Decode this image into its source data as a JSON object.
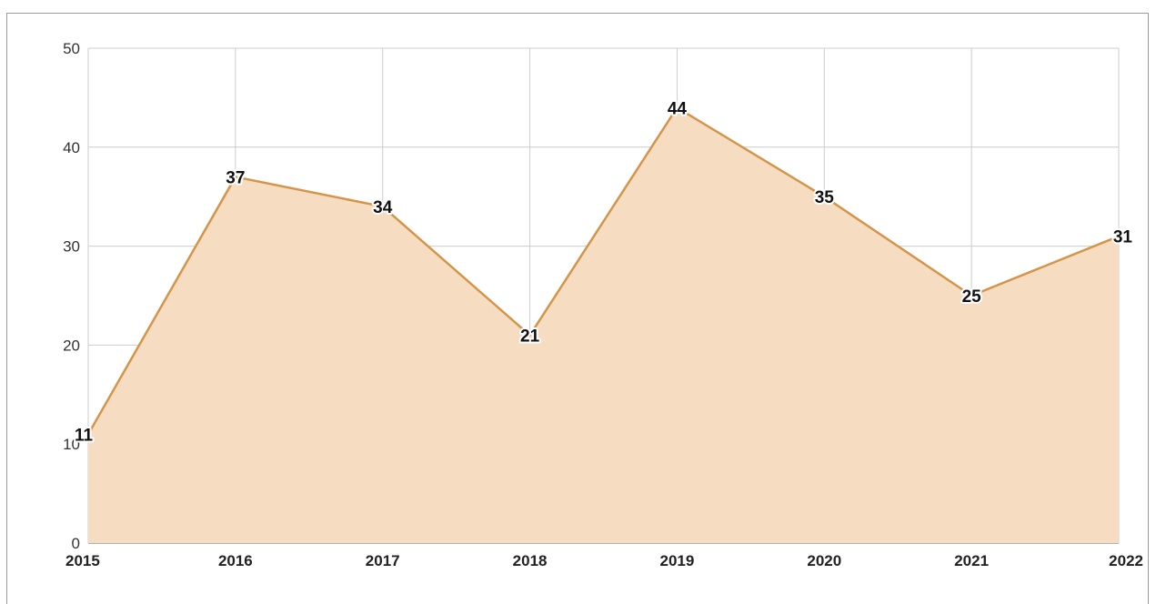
{
  "chart_data": {
    "type": "area",
    "title": "",
    "xlabel": "",
    "ylabel": "",
    "categories": [
      "2015",
      "2016",
      "2017",
      "2018",
      "2019",
      "2020",
      "2021",
      "2022"
    ],
    "series": [
      {
        "values": [
          11,
          37,
          34,
          21,
          44,
          35,
          25,
          31
        ]
      }
    ],
    "ylim": [
      0,
      50
    ],
    "yticks": [
      0,
      10,
      20,
      30,
      40,
      50
    ],
    "grid": true,
    "legend": "none",
    "colors": {
      "line": "#d4954a",
      "fill": "#f6dcc0",
      "grid": "#cccccc"
    }
  }
}
